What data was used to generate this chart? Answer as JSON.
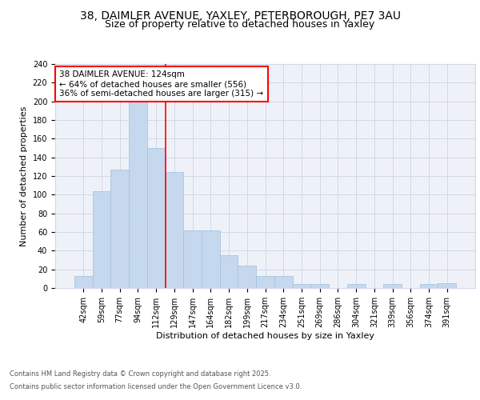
{
  "title_line1": "38, DAIMLER AVENUE, YAXLEY, PETERBOROUGH, PE7 3AU",
  "title_line2": "Size of property relative to detached houses in Yaxley",
  "xlabel": "Distribution of detached houses by size in Yaxley",
  "ylabel": "Number of detached properties",
  "bar_labels": [
    "42sqm",
    "59sqm",
    "77sqm",
    "94sqm",
    "112sqm",
    "129sqm",
    "147sqm",
    "164sqm",
    "182sqm",
    "199sqm",
    "217sqm",
    "234sqm",
    "251sqm",
    "269sqm",
    "286sqm",
    "304sqm",
    "321sqm",
    "339sqm",
    "356sqm",
    "374sqm",
    "391sqm"
  ],
  "bar_values": [
    13,
    104,
    127,
    200,
    150,
    124,
    62,
    62,
    35,
    24,
    13,
    13,
    4,
    4,
    0,
    4,
    0,
    4,
    0,
    4,
    5
  ],
  "bar_color": "#c5d8ed",
  "bar_edgecolor": "#a0c0de",
  "vline_x": 4.5,
  "vline_color": "red",
  "annotation_text": "38 DAIMLER AVENUE: 124sqm\n← 64% of detached houses are smaller (556)\n36% of semi-detached houses are larger (315) →",
  "annotation_box_color": "white",
  "annotation_box_edgecolor": "red",
  "ylim": [
    0,
    240
  ],
  "yticks": [
    0,
    20,
    40,
    60,
    80,
    100,
    120,
    140,
    160,
    180,
    200,
    220,
    240
  ],
  "grid_color": "#d0d8e8",
  "background_color": "#eef2f8",
  "footnote_line1": "Contains HM Land Registry data © Crown copyright and database right 2025.",
  "footnote_line2": "Contains public sector information licensed under the Open Government Licence v3.0.",
  "title_fontsize": 10,
  "subtitle_fontsize": 9,
  "axis_label_fontsize": 8,
  "tick_fontsize": 7,
  "annotation_fontsize": 7.5,
  "footnote_fontsize": 6
}
